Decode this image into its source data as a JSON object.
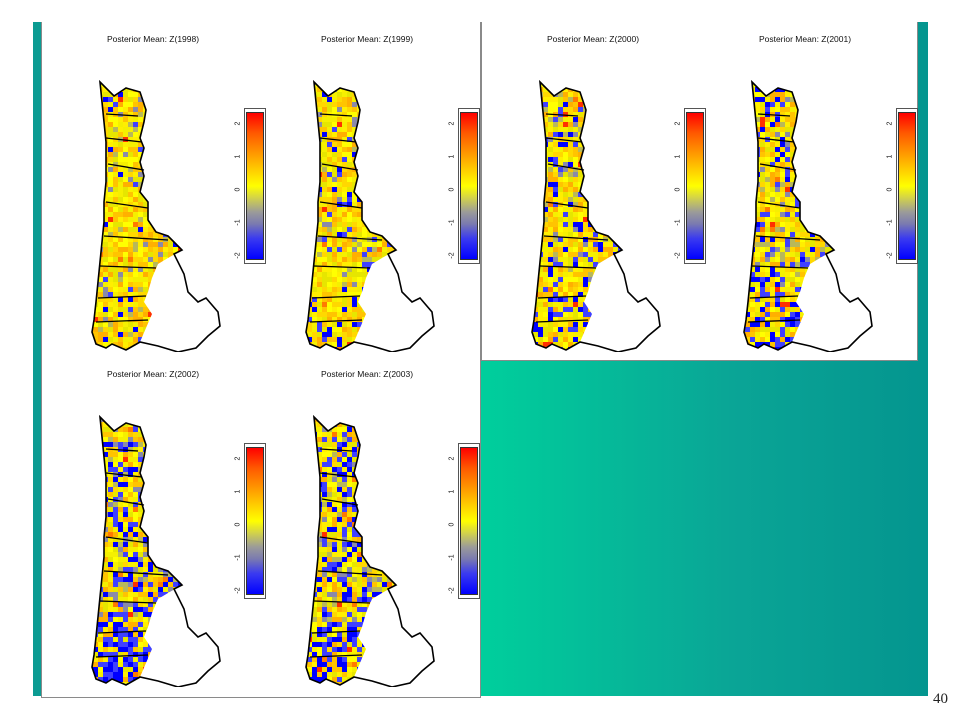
{
  "slide": {
    "page_number": "40",
    "accent_color": "#00c99a",
    "bar_color": "#0b9b92"
  },
  "plots": [
    {
      "title": "Posterior Mean: Z(1998)"
    },
    {
      "title": "Posterior Mean: Z(1999)"
    },
    {
      "title": "Posterior Mean: Z(2000)"
    },
    {
      "title": "Posterior Mean: Z(2001)"
    },
    {
      "title": "Posterior Mean: Z(2002)"
    },
    {
      "title": "Posterior Mean: Z(2003)"
    }
  ],
  "scale": {
    "ticks": [
      "2",
      "1",
      "0",
      "-1",
      "-2"
    ],
    "colors": [
      "#ff0000",
      "#ff9a00",
      "#ffff00",
      "#9a9a9a",
      "#0000ff"
    ]
  }
}
